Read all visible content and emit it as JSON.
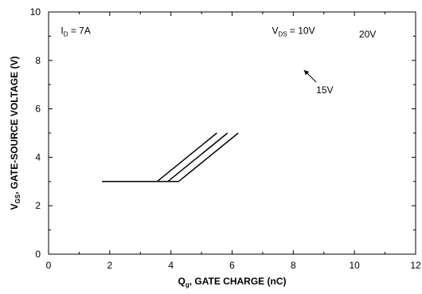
{
  "chart_data": {
    "type": "line",
    "xlabel_main": "Q",
    "xlabel_sub": "g",
    "xlabel_rest": ", GATE CHARGE (nC)",
    "ylabel_main": "V",
    "ylabel_sub": "GS",
    "ylabel_rest": ", GATE-SOURCE VOLTAGE (V)",
    "xlim": [
      0,
      12
    ],
    "ylim": [
      0,
      10
    ],
    "xticks": [
      0,
      2,
      4,
      6,
      8,
      10,
      12
    ],
    "yticks": [
      0,
      2,
      4,
      6,
      8,
      10
    ],
    "grid": false,
    "series": [
      {
        "name": "15V",
        "x": [
          1.75,
          3.55,
          5.5
        ],
        "y": [
          3.0,
          3.0,
          5.0
        ]
      },
      {
        "name": "10V",
        "x": [
          1.75,
          3.9,
          5.85
        ],
        "y": [
          3.0,
          3.0,
          5.0
        ]
      },
      {
        "name": "20V",
        "x": [
          1.75,
          4.25,
          6.2
        ],
        "y": [
          3.0,
          3.0,
          5.0
        ]
      }
    ],
    "annotations": {
      "id_main": "I",
      "id_sub": "D",
      "id_rest": " = 7A",
      "vds_main": "V",
      "vds_sub": "DS",
      "vds_rest": " = 10V",
      "v20": "20V",
      "v15": "15V"
    },
    "annotation_positions": {
      "id": [
        0.4,
        9.1
      ],
      "vds": [
        7.3,
        9.1
      ],
      "v20": [
        10.15,
        8.95
      ],
      "v15": [
        8.75,
        6.65
      ],
      "arrow_from": [
        8.75,
        7.1
      ],
      "arrow_to": [
        8.35,
        7.6
      ]
    }
  }
}
